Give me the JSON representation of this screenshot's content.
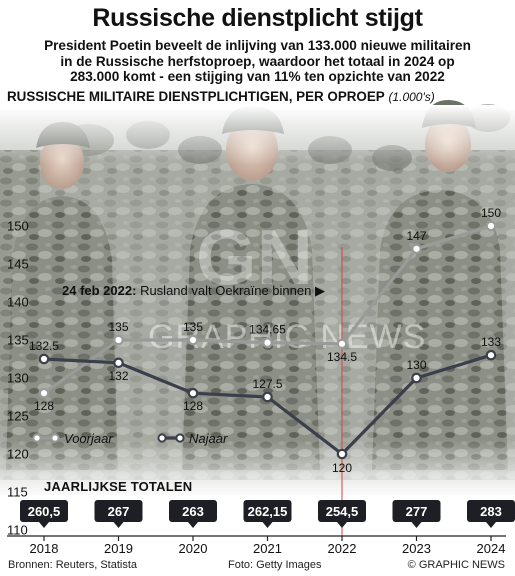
{
  "title": "Russische dienstplicht stijgt",
  "subtitle": [
    "President Poetin beveelt de inlijving van 133.000 nieuwe militairen",
    "in de Russische herfstoproep, waardoor het totaal in 2024 op",
    "283.000 komt - een stijging van 11% ten opzichte van 2022"
  ],
  "series_heading": "RUSSISCHE MILITAIRE DIENSTPLICHTIGEN, PER OPROEP",
  "series_heading_unit": "(1.000's)",
  "annotation": {
    "date": "24 feb 2022:",
    "text": "Rusland valt Oekraïne binnen",
    "arrow": "▶"
  },
  "totals_heading": "JAARLIJKSE TOTALEN",
  "source": "Bronnen: Reuters, Statista",
  "photo_credit": "Foto: Getty Images",
  "brand": "© GRAPHIC NEWS",
  "watermark_text": "GRAPHIC NEWS",
  "logo_text": "GN",
  "colors": {
    "spring": "#9a9a98",
    "autumn": "#3a3f4c",
    "event_line": "#d94040",
    "badge": "#1e1f24",
    "background_photo": "camouflage-soldiers"
  },
  "chart_data": {
    "type": "line",
    "x": [
      "2018",
      "2019",
      "2020",
      "2021",
      "2022",
      "2023",
      "2024"
    ],
    "series": [
      {
        "name": "Voorjaar",
        "values": [
          128,
          135,
          135,
          134.65,
          134.5,
          147,
          150
        ],
        "labels": [
          "128",
          "135",
          "135",
          "134.65",
          "134.5",
          "147",
          "150"
        ]
      },
      {
        "name": "Najaar",
        "values": [
          132.5,
          132,
          128,
          127.5,
          120,
          130,
          133
        ],
        "labels": [
          "132.5",
          "132",
          "128",
          "127.5",
          "120",
          "130",
          "133"
        ]
      }
    ],
    "annual_totals": [
      "260,5",
      "267",
      "263",
      "262,15",
      "254,5",
      "277",
      "283"
    ],
    "yticks": [
      110,
      115,
      120,
      125,
      130,
      135,
      140,
      145,
      150
    ],
    "ylim": [
      110,
      150
    ],
    "event_x": "2022",
    "legend_position": "bottom-left",
    "grid": false
  }
}
